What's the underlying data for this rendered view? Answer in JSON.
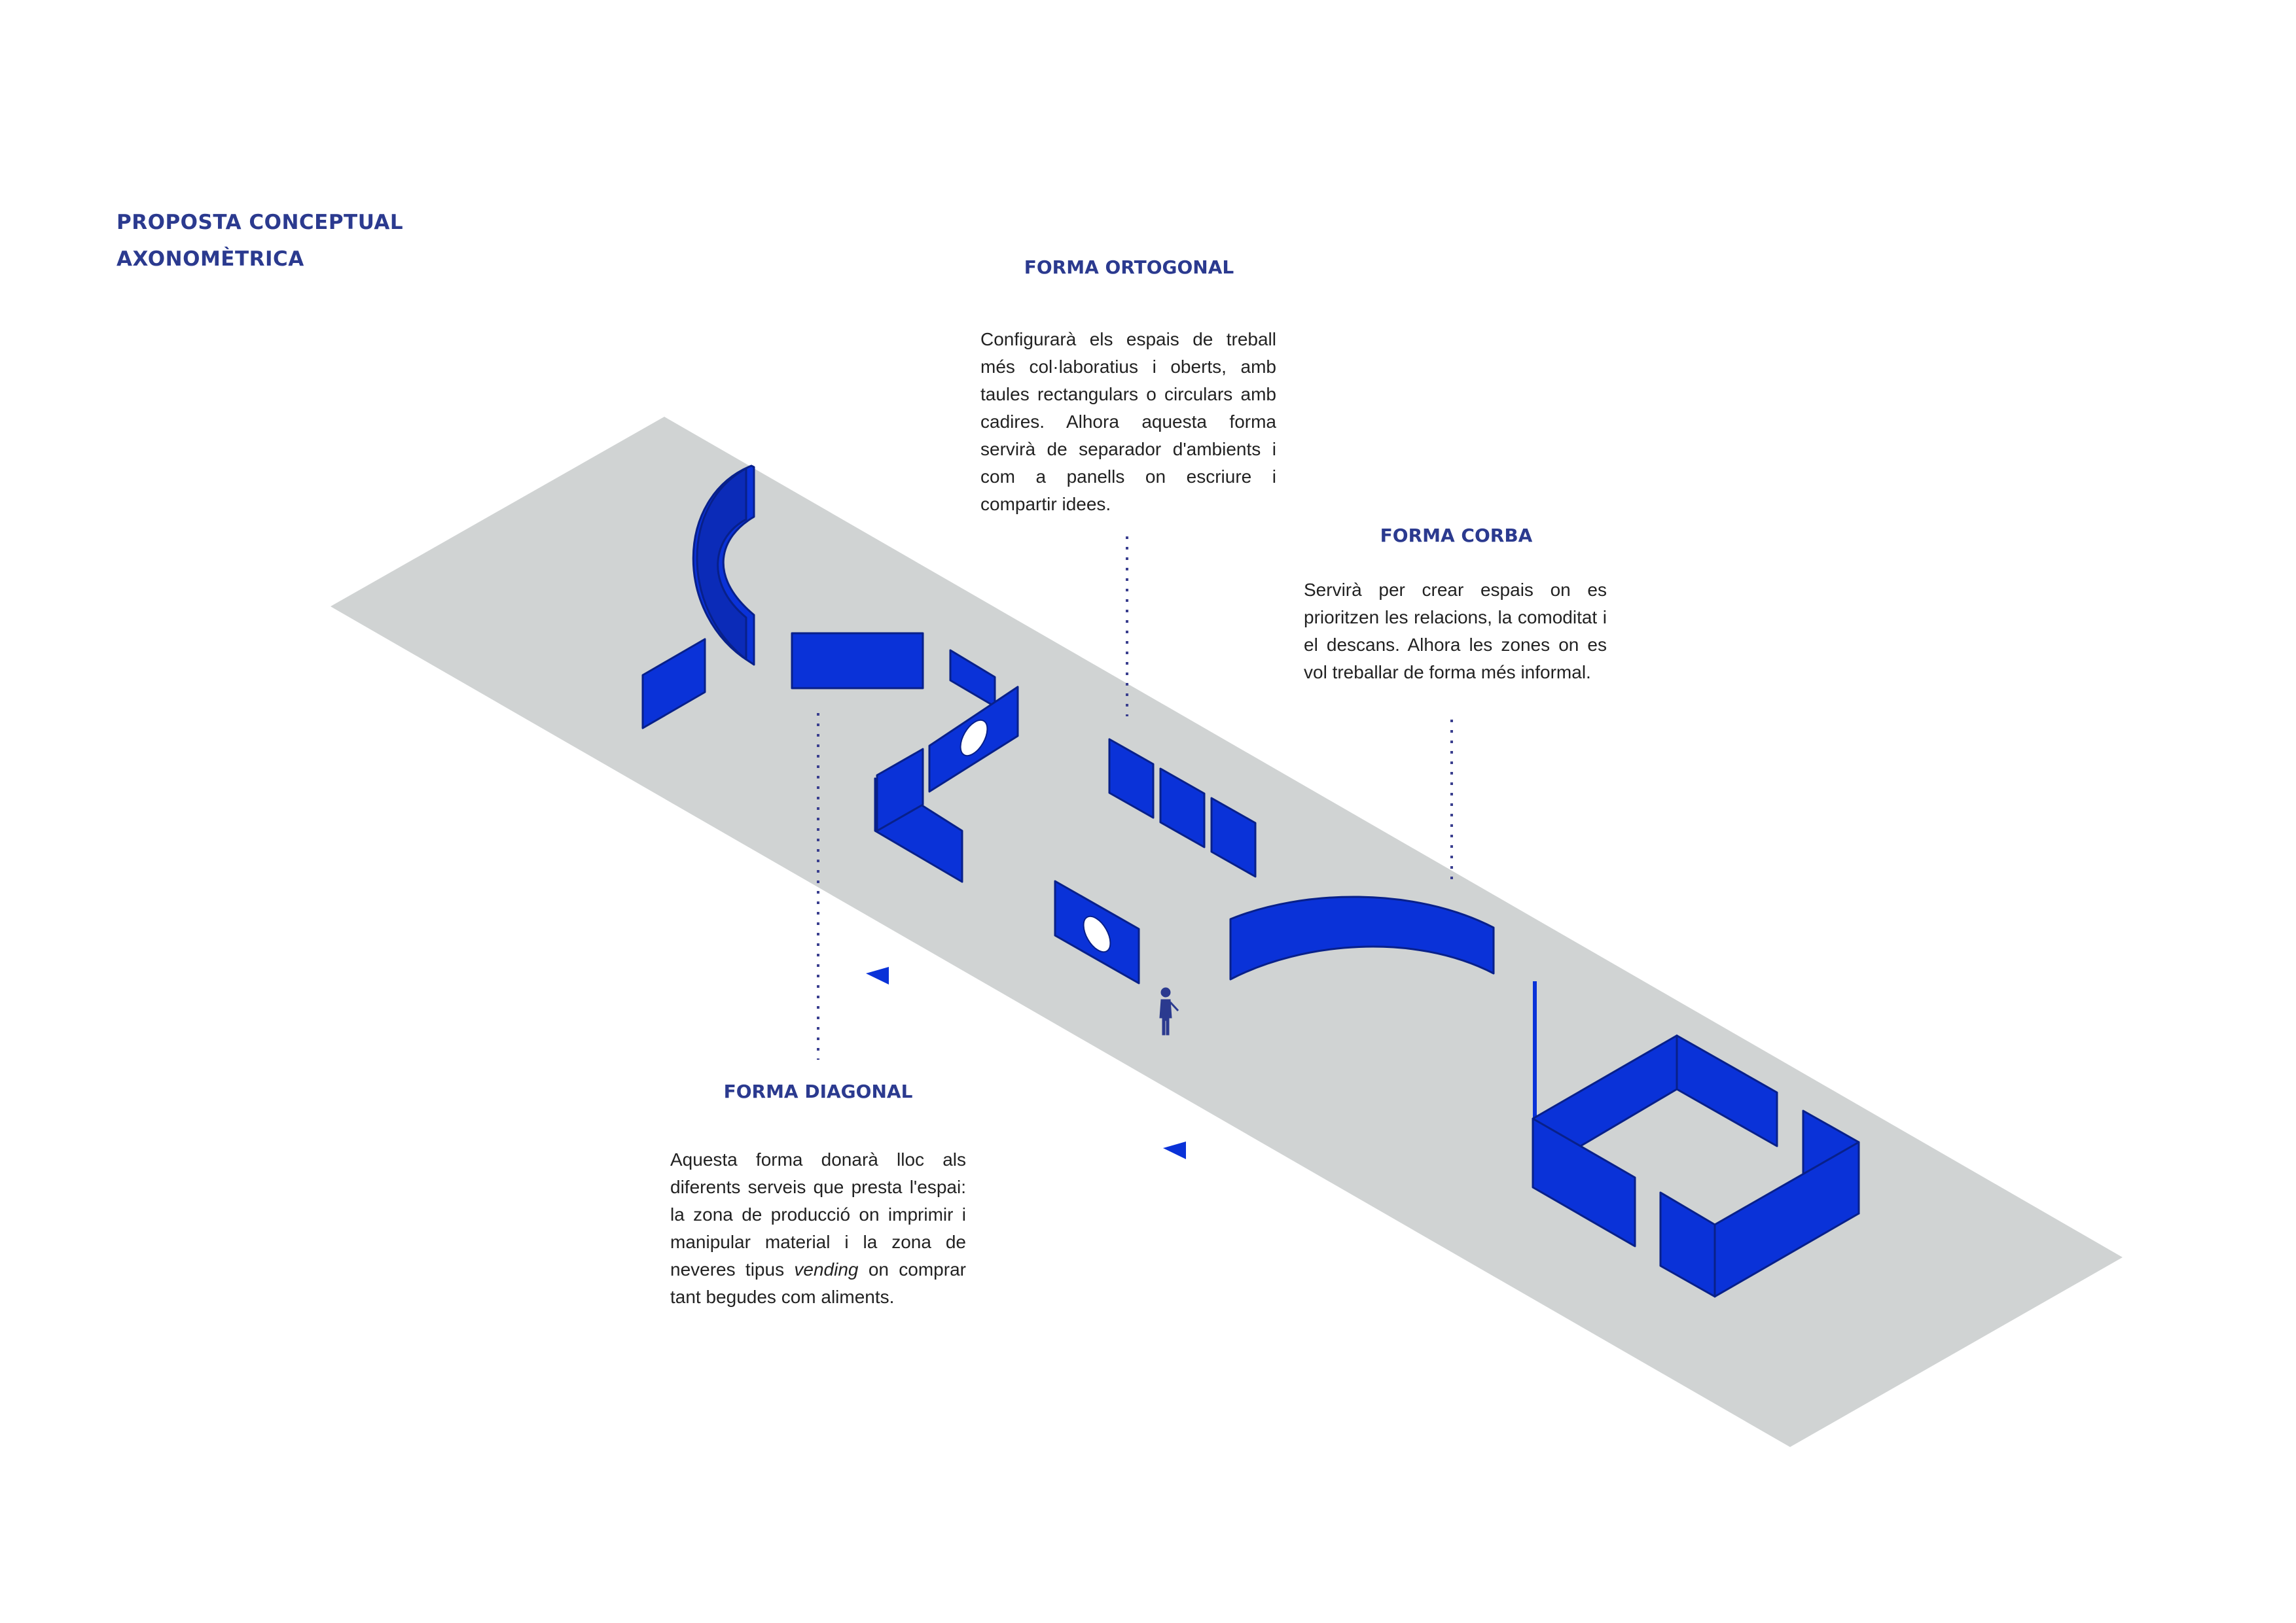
{
  "title": {
    "line1": "PROPOSTA CONCEPTUAL",
    "line2": "AXONOMÈTRICA"
  },
  "colors": {
    "accent": "#2b3a8f",
    "panel": "#0a32d8",
    "panel_edge": "#08208a",
    "floor": "#d0d3d3",
    "dots": "#3a3f8f"
  },
  "sections": {
    "ortogonal": {
      "heading": "FORMA ORTOGONAL",
      "text": "Configurarà els espais de treball més col·laboratius i oberts, amb taules rectangulars o circulars amb cadires. Alhora aquesta forma servirà de separador d'ambients i com a panells on escriure i compartir idees."
    },
    "corba": {
      "heading": "FORMA CORBA",
      "text": "Servirà per crear espais on es prioritzen les relacions, la comoditat i el descans. Alhora les zones on es vol treballar de forma més informal."
    },
    "diagonal": {
      "heading": "FORMA DIAGONAL",
      "text_before": "Aquesta forma donarà lloc als diferents serveis que presta l'espai: la zona de producció on imprimir i manipular material i la zona de neveres tipus ",
      "text_italic": "vending",
      "text_after": " on comprar tant begudes com aliments."
    }
  }
}
